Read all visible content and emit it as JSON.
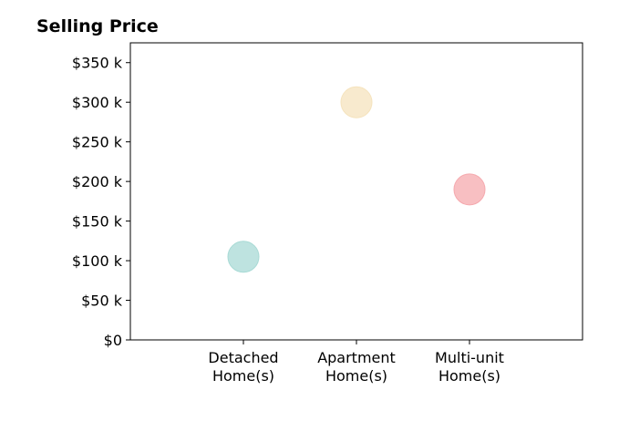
{
  "chart_data": {
    "type": "scatter",
    "title": "Selling Price",
    "xlabel": "",
    "ylabel": "",
    "categories": [
      [
        "Detached",
        "Home(s)"
      ],
      [
        "Apartment",
        "Home(s)"
      ],
      [
        "Multi-unit",
        "Home(s)"
      ]
    ],
    "values": [
      105000,
      300000,
      190000
    ],
    "colors": [
      "#a8dad5",
      "#f5e3bd",
      "#f5a9ae"
    ],
    "ylim": [
      0,
      375000
    ],
    "yticks": [
      {
        "value": 0,
        "label": "$0"
      },
      {
        "value": 50000,
        "label": "$50 k"
      },
      {
        "value": 100000,
        "label": "$100 k"
      },
      {
        "value": 150000,
        "label": "$150 k"
      },
      {
        "value": 200000,
        "label": "$200 k"
      },
      {
        "value": 250000,
        "label": "$250 k"
      },
      {
        "value": 300000,
        "label": "$300 k"
      },
      {
        "value": 350000,
        "label": "$350 k"
      }
    ],
    "grid": false,
    "legend": "none"
  }
}
